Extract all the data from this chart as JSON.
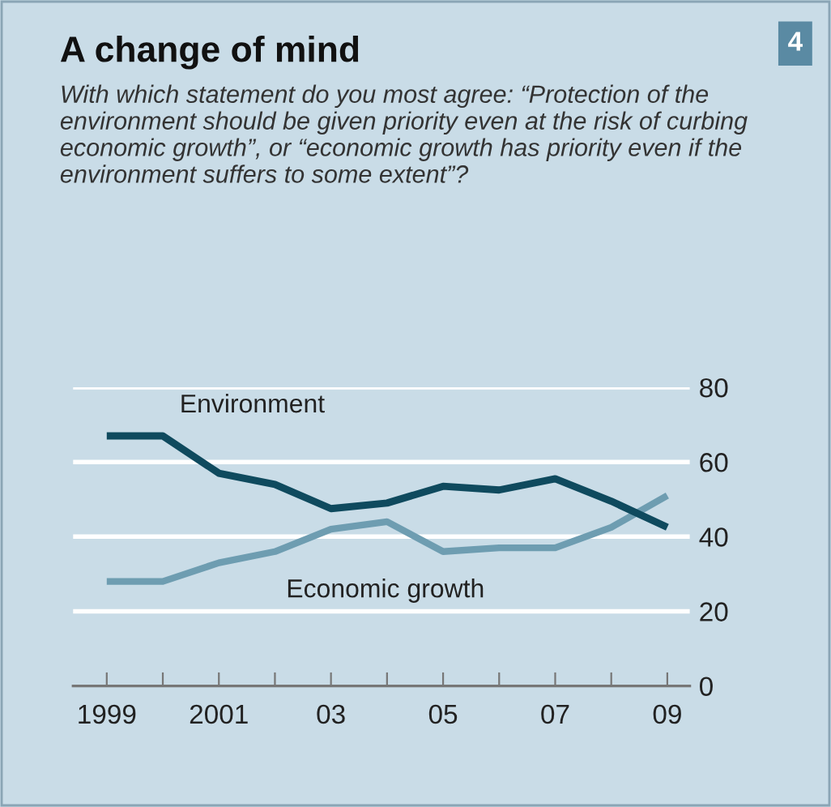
{
  "chart_data": {
    "type": "line",
    "title": "A change of mind",
    "subtitle": "With which statement do you most agree: “Protection of the environment should be given priority even at the risk of curbing economic growth”, or “economic growth has priority even if the environment suffers to some extent”?",
    "annotations": [
      "4"
    ],
    "x": [
      1999,
      2000,
      2001,
      2002,
      2003,
      2004,
      2005,
      2006,
      2007,
      2008,
      2009
    ],
    "series": [
      {
        "name": "Environment",
        "color": "#0f4a5e",
        "values": [
          67,
          67,
          57,
          54,
          47.5,
          49,
          53.5,
          52.5,
          55.5,
          49.5,
          42.5
        ]
      },
      {
        "name": "Economic growth",
        "color": "#6e9db1",
        "values": [
          28,
          28,
          33,
          36,
          42,
          44,
          36,
          37,
          37,
          42.5,
          51
        ]
      }
    ],
    "xlim": [
      1998.4,
      2009.4
    ],
    "ylim": [
      0,
      80
    ],
    "xticks": [
      {
        "value": 1999,
        "label": "1999"
      },
      {
        "value": 2000,
        "label": null
      },
      {
        "value": 2001,
        "label": "2001"
      },
      {
        "value": 2002,
        "label": null
      },
      {
        "value": 2003,
        "label": "03"
      },
      {
        "value": 2004,
        "label": null
      },
      {
        "value": 2005,
        "label": "05"
      },
      {
        "value": 2006,
        "label": null
      },
      {
        "value": 2007,
        "label": "07"
      },
      {
        "value": 2008,
        "label": null
      },
      {
        "value": 2009,
        "label": "09"
      }
    ],
    "yticks": [
      0,
      20,
      40,
      60,
      80
    ],
    "grid": "y",
    "legend": false,
    "marker": "none",
    "line_style": "solid"
  }
}
